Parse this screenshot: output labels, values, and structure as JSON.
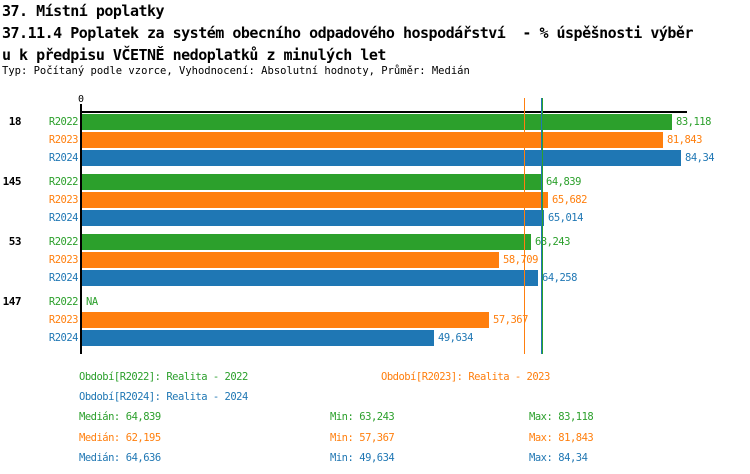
{
  "header": {
    "title_line1": "37. Místní poplatky",
    "title_line2": "37.11.4 Poplatek za systém obecního odpadového hospodářství  - % úspěšnosti výběr",
    "title_line3": "u k předpisu VČETNĚ nedoplatků z minulých let",
    "meta": "Typ: Počítaný podle vzorce, Vyhodnocení: Absolutní hodnoty, Průměr: Medián"
  },
  "chart_data": {
    "type": "bar",
    "orientation": "horizontal",
    "x_origin_label": "0",
    "xlim": [
      0,
      85.2
    ],
    "grid": false,
    "categories": [
      "18",
      "145",
      "53",
      "147"
    ],
    "series_colors": {
      "R2022": "#2ca02c",
      "R2023": "#ff7f0e",
      "R2024": "#1f77b4"
    },
    "groups": [
      {
        "label": "18",
        "bars": [
          {
            "series": "R2022",
            "value": 83.118,
            "display": "83,118"
          },
          {
            "series": "R2023",
            "value": 81.843,
            "display": "81,843"
          },
          {
            "series": "R2024",
            "value": 84.34,
            "display": "84,34"
          }
        ]
      },
      {
        "label": "145",
        "bars": [
          {
            "series": "R2022",
            "value": 64.839,
            "display": "64,839"
          },
          {
            "series": "R2023",
            "value": 65.682,
            "display": "65,682"
          },
          {
            "series": "R2024",
            "value": 65.014,
            "display": "65,014"
          }
        ]
      },
      {
        "label": "53",
        "bars": [
          {
            "series": "R2022",
            "value": 63.243,
            "display": "63,243"
          },
          {
            "series": "R2023",
            "value": 58.709,
            "display": "58,709"
          },
          {
            "series": "R2024",
            "value": 64.258,
            "display": "64,258"
          }
        ]
      },
      {
        "label": "147",
        "bars": [
          {
            "series": "R2022",
            "value": null,
            "display": "NA"
          },
          {
            "series": "R2023",
            "value": 57.367,
            "display": "57,367"
          },
          {
            "series": "R2024",
            "value": 49.634,
            "display": "49,634"
          }
        ]
      }
    ],
    "median_lines": [
      {
        "series": "R2023",
        "value": 62.195
      },
      {
        "series": "R2024",
        "value": 64.636
      },
      {
        "series": "R2022",
        "value": 64.839
      }
    ],
    "legend": [
      {
        "series": "R2022",
        "text": "Období[R2022]: Realita - 2022"
      },
      {
        "series": "R2023",
        "text": "Období[R2023]: Realita - 2023"
      },
      {
        "series": "R2024",
        "text": "Období[R2024]: Realita - 2024"
      }
    ],
    "stats_labels": {
      "median": "Medián:",
      "min": "Min:",
      "max": "Max:"
    },
    "stats": [
      {
        "series": "R2022",
        "median": "64,839",
        "min": "63,243",
        "max": "83,118"
      },
      {
        "series": "R2023",
        "median": "62,195",
        "min": "57,367",
        "max": "81,843"
      },
      {
        "series": "R2024",
        "median": "64,636",
        "min": "49,634",
        "max": "84,34"
      }
    ]
  }
}
